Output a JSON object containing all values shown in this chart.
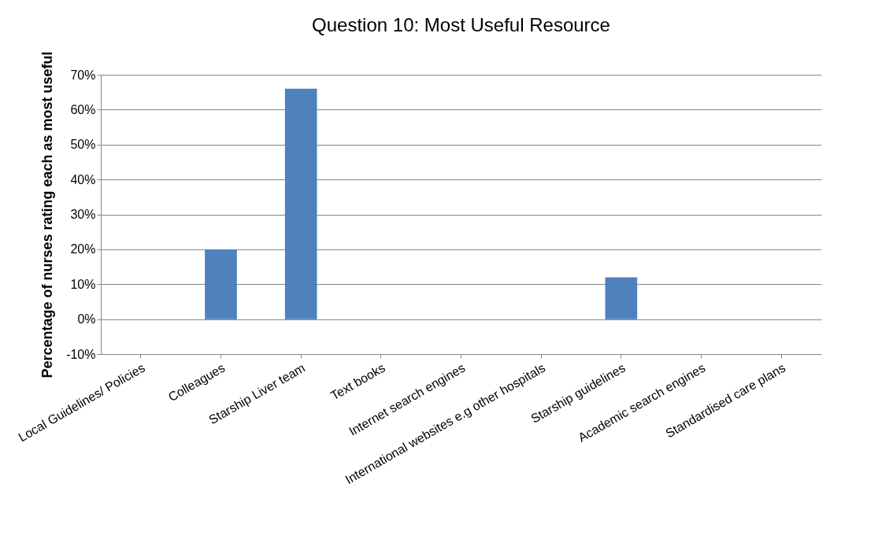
{
  "chart_data": {
    "type": "bar",
    "title": "Question 10: Most Useful Resource",
    "ylabel": "Percentage of nurses rating each as most useful",
    "categories": [
      "Local Guidelines/ Policies",
      "Colleagues",
      "Starship Liver team",
      "Text books",
      "Internet search engines",
      "International websites e.g other hospitals",
      "Starship guidelines",
      "Academic search engines",
      "Standardised care plans"
    ],
    "values": [
      0,
      20,
      66,
      0,
      0,
      0,
      12,
      0,
      0
    ],
    "color": "#4f81bd",
    "ylim": [
      -10,
      70
    ],
    "yticks": [
      {
        "value": -10,
        "label": "-10%"
      },
      {
        "value": 0,
        "label": "0%"
      },
      {
        "value": 10,
        "label": "10%"
      },
      {
        "value": 20,
        "label": "20%"
      },
      {
        "value": 30,
        "label": "30%"
      },
      {
        "value": 40,
        "label": "40%"
      },
      {
        "value": 50,
        "label": "50%"
      },
      {
        "value": 60,
        "label": "60%"
      },
      {
        "value": 70,
        "label": "70%"
      }
    ],
    "grid": "y"
  }
}
